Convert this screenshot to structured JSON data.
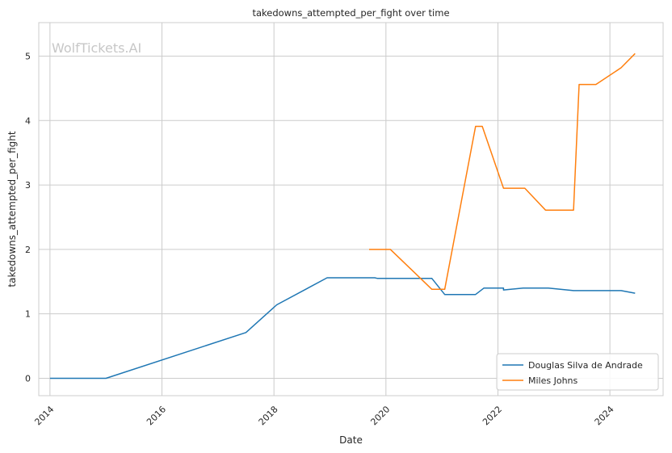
{
  "chart_data": {
    "type": "line",
    "title": "takedowns_attempted_per_fight over time",
    "xlabel": "Date",
    "ylabel": "takedowns_attempted_per_fight",
    "xlim": [
      2013.8,
      2024.95
    ],
    "ylim": [
      -0.27,
      5.52
    ],
    "x_ticks": [
      2014,
      2016,
      2018,
      2020,
      2022,
      2024
    ],
    "y_ticks": [
      0,
      1,
      2,
      3,
      4,
      5
    ],
    "grid": true,
    "legend_position": "lower-right",
    "watermark": "WolfTickets.AI",
    "series": [
      {
        "name": "Douglas Silva de Andrade",
        "color": "#1f77b4",
        "points": [
          [
            2014.0,
            0.0
          ],
          [
            2015.0,
            0.0
          ],
          [
            2017.5,
            0.71
          ],
          [
            2018.05,
            1.14
          ],
          [
            2018.95,
            1.56
          ],
          [
            2019.8,
            1.56
          ],
          [
            2019.85,
            1.55
          ],
          [
            2020.82,
            1.55
          ],
          [
            2021.05,
            1.3
          ],
          [
            2021.6,
            1.3
          ],
          [
            2021.75,
            1.4
          ],
          [
            2022.1,
            1.4
          ],
          [
            2022.1,
            1.37
          ],
          [
            2022.45,
            1.4
          ],
          [
            2022.9,
            1.4
          ],
          [
            2023.35,
            1.36
          ],
          [
            2024.2,
            1.36
          ],
          [
            2024.45,
            1.32
          ]
        ]
      },
      {
        "name": "Miles Johns",
        "color": "#ff7f0e",
        "points": [
          [
            2019.7,
            2.0
          ],
          [
            2020.08,
            2.0
          ],
          [
            2020.82,
            1.38
          ],
          [
            2021.05,
            1.38
          ],
          [
            2021.6,
            3.91
          ],
          [
            2021.72,
            3.91
          ],
          [
            2022.1,
            2.95
          ],
          [
            2022.48,
            2.95
          ],
          [
            2022.85,
            2.61
          ],
          [
            2023.35,
            2.61
          ],
          [
            2023.45,
            4.56
          ],
          [
            2023.75,
            4.56
          ],
          [
            2024.2,
            4.82
          ],
          [
            2024.45,
            5.04
          ]
        ]
      }
    ]
  },
  "colors": {
    "grid": "#cccccc",
    "axes": "#cccccc",
    "watermark": "#c7c7c7"
  }
}
